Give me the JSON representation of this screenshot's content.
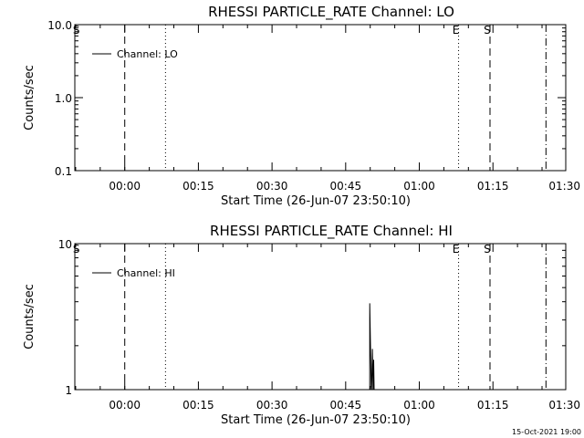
{
  "chart_data": [
    {
      "type": "line",
      "title": "RHESSI PARTICLE_RATE Channel: LO",
      "xlabel": "Start Time (26-Jun-07 23:50:10)",
      "ylabel": "Counts/sec",
      "y_scale": "log",
      "ylim": [
        0.1,
        10.0
      ],
      "yticks": [
        "10.0",
        "1.0",
        "0.1"
      ],
      "yticks_values": [
        10.0,
        1.0,
        0.1
      ],
      "xlim_minutes": [
        -10.17,
        89.83
      ],
      "xticks": [
        "00:00",
        "00:15",
        "00:30",
        "00:45",
        "01:00",
        "01:15",
        "01:30"
      ],
      "xticks_minutes": [
        0,
        15,
        30,
        45,
        60,
        75,
        90
      ],
      "legend": {
        "position": "top-left",
        "entries": [
          {
            "label": "Channel: LO",
            "color": "#000000"
          }
        ]
      },
      "series": [
        {
          "name": "Channel: LO",
          "x_minutes": [],
          "values": []
        }
      ],
      "markers": [
        {
          "label": "S",
          "x_minutes": -10.0,
          "style": "none"
        },
        {
          "label": "",
          "x_minutes": 0.0,
          "style": "dashed"
        },
        {
          "label": "",
          "x_minutes": 8.3,
          "style": "dotted"
        },
        {
          "label": "E",
          "x_minutes": 68.0,
          "style": "dotted"
        },
        {
          "label": "S",
          "x_minutes": 74.4,
          "style": "dashed"
        },
        {
          "label": "",
          "x_minutes": 85.8,
          "style": "dashdot"
        }
      ],
      "grid": false
    },
    {
      "type": "line",
      "title": "RHESSI PARTICLE_RATE Channel: HI",
      "xlabel": "Start Time (26-Jun-07 23:50:10)",
      "ylabel": "Counts/sec",
      "y_scale": "log",
      "ylim": [
        1,
        10
      ],
      "yticks": [
        "10",
        "1"
      ],
      "yticks_values": [
        10,
        1
      ],
      "xlim_minutes": [
        -10.17,
        89.83
      ],
      "xticks": [
        "00:00",
        "00:15",
        "00:30",
        "00:45",
        "01:00",
        "01:15",
        "01:30"
      ],
      "xticks_minutes": [
        0,
        15,
        30,
        45,
        60,
        75,
        90
      ],
      "legend": {
        "position": "top-left",
        "entries": [
          {
            "label": "Channel: HI",
            "color": "#000000"
          }
        ]
      },
      "series": [
        {
          "name": "Channel: HI",
          "x_minutes": [
            49.9,
            50.2,
            50.3,
            50.45,
            50.6,
            50.7,
            50.8
          ],
          "values": [
            3.9,
            1.05,
            1.0,
            1.9,
            1.0,
            1.6,
            1.0
          ]
        }
      ],
      "markers": [
        {
          "label": "S",
          "x_minutes": -10.0,
          "style": "none"
        },
        {
          "label": "",
          "x_minutes": 0.0,
          "style": "dashed"
        },
        {
          "label": "",
          "x_minutes": 8.3,
          "style": "dotted"
        },
        {
          "label": "E",
          "x_minutes": 68.0,
          "style": "dotted"
        },
        {
          "label": "S",
          "x_minutes": 74.4,
          "style": "dashed"
        },
        {
          "label": "",
          "x_minutes": 85.8,
          "style": "dashdot"
        }
      ],
      "grid": false
    }
  ],
  "footer": {
    "timestamp": "15-Oct-2021 19:00"
  }
}
